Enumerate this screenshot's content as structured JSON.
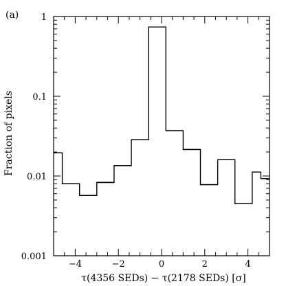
{
  "chart_data": {
    "type": "histogram",
    "panel_label": "(a)",
    "xlabel": "τ(4356 SEDs) − τ(2178 SEDs) [σ]",
    "ylabel": "Fraction of pixels",
    "xlim": [
      -5.0,
      5.0
    ],
    "ylim": [
      0.001,
      1.0
    ],
    "yscale": "log",
    "x_ticks": [
      -4,
      -2,
      0,
      2,
      4
    ],
    "x_tick_labels": [
      "−4",
      "−2",
      "0",
      "2",
      "4"
    ],
    "y_ticks": [
      0.001,
      0.01,
      0.1,
      1
    ],
    "y_tick_labels": [
      "0.001",
      "0.01",
      "0.1",
      "1"
    ],
    "bin_edges": [
      -5.0,
      -4.6,
      -3.8,
      -3.0,
      -2.2,
      -1.4,
      -0.6,
      0.2,
      1.0,
      1.8,
      2.6,
      3.4,
      4.2,
      4.6,
      5.0
    ],
    "fractions": [
      0.0195,
      0.008,
      0.0057,
      0.0083,
      0.0135,
      0.0285,
      0.74,
      0.037,
      0.0215,
      0.0078,
      0.016,
      0.0045,
      0.0112,
      0.0093
    ],
    "grid": false,
    "line_color": "#000000"
  }
}
